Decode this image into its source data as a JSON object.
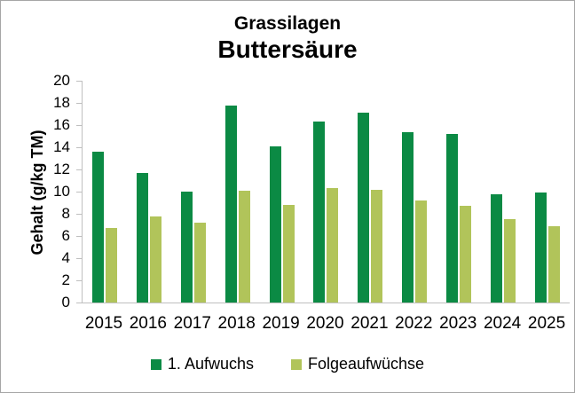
{
  "window": {
    "background": "#FFFFFF",
    "border_color": "#A6A6A6"
  },
  "chart_data": {
    "type": "bar",
    "title": "Grassilagen",
    "subtitle": "Buttersäure",
    "ylabel": "Gehalt (g/kg TM)",
    "xlabel": "",
    "ylim": [
      0,
      20
    ],
    "ytick_step": 2,
    "yticks": [
      0,
      2,
      4,
      6,
      8,
      10,
      12,
      14,
      16,
      18,
      20
    ],
    "grid": false,
    "legend_position": "bottom",
    "axis_color": "#BFBFBF",
    "text_color": "#000000",
    "categories": [
      "2015",
      "2016",
      "2017",
      "2018",
      "2019",
      "2020",
      "2021",
      "2022",
      "2023",
      "2024",
      "2025"
    ],
    "series": [
      {
        "name": "1. Aufwuchs",
        "color": "#0B8A44",
        "values": [
          13.6,
          11.7,
          10.0,
          17.8,
          14.1,
          16.3,
          17.1,
          15.4,
          15.2,
          9.8,
          9.9
        ]
      },
      {
        "name": "Folgeaufwüchse",
        "color": "#B1C45A",
        "values": [
          6.7,
          7.8,
          7.2,
          10.1,
          8.8,
          10.3,
          10.2,
          9.2,
          8.7,
          7.5,
          6.9
        ]
      }
    ]
  }
}
